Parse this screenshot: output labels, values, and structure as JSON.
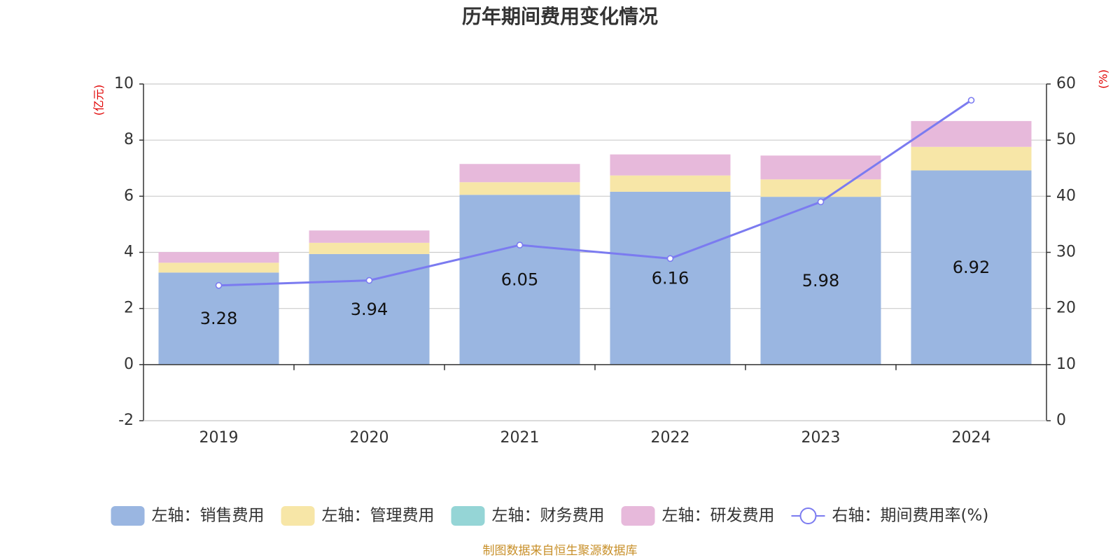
{
  "chart_data": {
    "type": "bar",
    "title": "历年期间费用变化情况",
    "categories": [
      "2019",
      "2020",
      "2021",
      "2022",
      "2023",
      "2024"
    ],
    "left_axis": {
      "unit": "(亿元)",
      "ylim": [
        -2,
        10
      ],
      "ticks": [
        -2,
        0,
        2,
        4,
        6,
        8,
        10
      ]
    },
    "right_axis": {
      "unit": "(%)",
      "ylim": [
        0,
        60
      ],
      "ticks": [
        0,
        10,
        20,
        30,
        40,
        50,
        60
      ]
    },
    "stacked": true,
    "grid": true,
    "legend_position": "bottom",
    "series": [
      {
        "name": "左轴：销售费用",
        "axis": "left",
        "type": "bar",
        "color": "#9ab6e1",
        "values": [
          3.28,
          3.94,
          6.05,
          6.16,
          5.98,
          6.92
        ],
        "show_labels": true
      },
      {
        "name": "左轴：管理费用",
        "axis": "left",
        "type": "bar",
        "color": "#f7e6a7",
        "values": [
          0.35,
          0.4,
          0.45,
          0.58,
          0.62,
          0.84
        ]
      },
      {
        "name": "左轴：财务费用",
        "axis": "left",
        "type": "bar",
        "color": "#95d5d6",
        "values": [
          0,
          0,
          0,
          0,
          0,
          0
        ]
      },
      {
        "name": "左轴：研发费用",
        "axis": "left",
        "type": "bar",
        "color": "#e7b9db",
        "values": [
          0.38,
          0.44,
          0.65,
          0.75,
          0.85,
          0.92
        ]
      },
      {
        "name": "右轴：期间费用率(%)",
        "axis": "right",
        "type": "line",
        "color": "#7b7bf0",
        "values": [
          24.1,
          25.0,
          31.3,
          28.9,
          39.0,
          57.1
        ]
      }
    ],
    "source": "制图数据来自恒生聚源数据库"
  }
}
